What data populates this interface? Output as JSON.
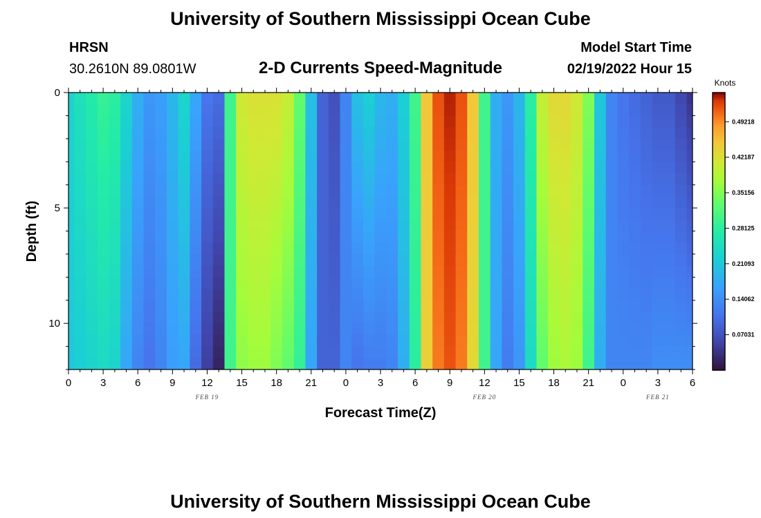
{
  "page": {
    "title": "University of Southern Mississippi Ocean Cube",
    "station_name": "HRSN",
    "station_coords": "30.2610N  89.0801W",
    "model_start_label": "Model Start Time",
    "model_start_value": "02/19/2022 Hour 15",
    "footer_title": "University of Southern Mississippi Ocean Cube"
  },
  "chart_data": {
    "type": "heatmap",
    "title": "2-D Currents Speed-Magnitude",
    "xlabel": "Forecast Time(Z)",
    "ylabel": "Depth (ft)",
    "ylim": [
      0,
      12
    ],
    "y_ticks": [
      0,
      5,
      10
    ],
    "x_tick_labels": [
      "0",
      "3",
      "6",
      "9",
      "12",
      "15",
      "18",
      "21",
      "0",
      "3",
      "6",
      "9",
      "12",
      "15",
      "18",
      "21",
      "0",
      "3",
      "6"
    ],
    "x_hours": [
      0,
      3,
      6,
      9,
      12,
      15,
      18,
      21,
      24,
      27,
      30,
      33,
      36,
      39,
      42,
      45,
      48,
      51,
      54
    ],
    "date_labels": [
      {
        "label": "FEB 19",
        "hour": 12
      },
      {
        "label": "FEB 20",
        "hour": 36
      },
      {
        "label": "FEB 21",
        "hour": 51
      }
    ],
    "depth_rows": 24,
    "hours_start": 0,
    "hours_end": 54,
    "time_step_hours": 1,
    "surface_speed_knots": [
      0.23,
      0.25,
      0.27,
      0.29,
      0.28,
      0.23,
      0.18,
      0.15,
      0.16,
      0.19,
      0.23,
      0.17,
      0.11,
      0.1,
      0.3,
      0.41,
      0.42,
      0.42,
      0.42,
      0.4,
      0.33,
      0.2,
      0.09,
      0.07,
      0.13,
      0.2,
      0.22,
      0.19,
      0.18,
      0.22,
      0.3,
      0.45,
      0.52,
      0.54,
      0.52,
      0.45,
      0.3,
      0.18,
      0.15,
      0.19,
      0.28,
      0.4,
      0.43,
      0.43,
      0.41,
      0.35,
      0.21,
      0.13,
      0.11,
      0.1,
      0.09,
      0.08,
      0.08,
      0.06,
      0.04
    ],
    "bottom_speed_knots": [
      0.21,
      0.22,
      0.23,
      0.24,
      0.23,
      0.17,
      0.13,
      0.11,
      0.13,
      0.16,
      0.17,
      0.1,
      0.05,
      0.02,
      0.3,
      0.36,
      0.37,
      0.37,
      0.35,
      0.33,
      0.29,
      0.17,
      0.09,
      0.09,
      0.13,
      0.11,
      0.12,
      0.12,
      0.13,
      0.18,
      0.28,
      0.44,
      0.5,
      0.52,
      0.5,
      0.43,
      0.3,
      0.17,
      0.12,
      0.15,
      0.24,
      0.33,
      0.37,
      0.38,
      0.37,
      0.3,
      0.18,
      0.13,
      0.13,
      0.13,
      0.13,
      0.14,
      0.14,
      0.14,
      0.14
    ],
    "colorbar": {
      "label": "Knots",
      "range": [
        0,
        0.55
      ],
      "tick_values": [
        0.07031,
        0.14062,
        0.21093,
        0.28125,
        0.35156,
        0.42187,
        0.49218
      ],
      "tick_labels": [
        "0.07031",
        "0.14062",
        "0.21093",
        "0.28125",
        "0.35156",
        "0.42187",
        "0.49218"
      ]
    },
    "colors": {
      "background": "#ffffff",
      "axis": "#000000",
      "min_color": "#30123b",
      "max_color": "#7a0403"
    }
  }
}
